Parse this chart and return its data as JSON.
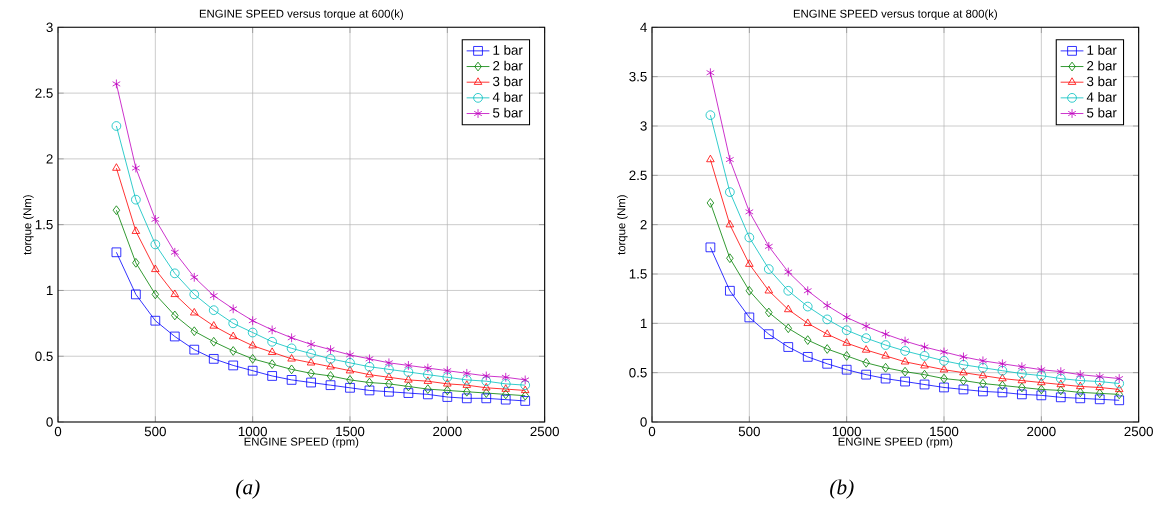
{
  "chart_data": [
    {
      "type": "line",
      "title": "ENGINE SPEED versus torque at 600(k)",
      "xlabel": "ENGINE SPEED (rpm)",
      "ylabel": "torque (Nm)",
      "annotations": [
        "(a)"
      ],
      "x": [
        300,
        400,
        500,
        600,
        700,
        800,
        900,
        1000,
        1100,
        1200,
        1300,
        1400,
        1500,
        1600,
        1700,
        1800,
        1900,
        2000,
        2100,
        2200,
        2300,
        2400
      ],
      "xlim": [
        0,
        2500
      ],
      "xticks": [
        0,
        500,
        1000,
        1500,
        2000,
        2500
      ],
      "ylim": [
        0,
        3
      ],
      "yticks": [
        0,
        0.5,
        1,
        1.5,
        2,
        2.5,
        3
      ],
      "grid": true,
      "legend": "top right",
      "line_style": "solid",
      "series": [
        {
          "name": "1 bar",
          "color": "#0000ff",
          "marker": "square",
          "values": [
            1.29,
            0.97,
            0.77,
            0.65,
            0.55,
            0.48,
            0.43,
            0.39,
            0.35,
            0.32,
            0.3,
            0.28,
            0.26,
            0.24,
            0.23,
            0.22,
            0.21,
            0.19,
            0.18,
            0.18,
            0.17,
            0.16
          ]
        },
        {
          "name": "2 bar",
          "color": "#008000",
          "marker": "diamond",
          "values": [
            1.61,
            1.21,
            0.97,
            0.81,
            0.69,
            0.61,
            0.54,
            0.48,
            0.44,
            0.4,
            0.37,
            0.35,
            0.32,
            0.3,
            0.29,
            0.27,
            0.25,
            0.24,
            0.23,
            0.22,
            0.21,
            0.2
          ]
        },
        {
          "name": "3 bar",
          "color": "#ff0000",
          "marker": "triangle",
          "values": [
            1.93,
            1.45,
            1.16,
            0.97,
            0.83,
            0.73,
            0.65,
            0.58,
            0.53,
            0.48,
            0.45,
            0.42,
            0.39,
            0.36,
            0.34,
            0.32,
            0.31,
            0.29,
            0.28,
            0.26,
            0.25,
            0.24
          ]
        },
        {
          "name": "4 bar",
          "color": "#00bfbf",
          "marker": "circle",
          "values": [
            2.25,
            1.69,
            1.35,
            1.13,
            0.97,
            0.85,
            0.75,
            0.68,
            0.61,
            0.56,
            0.52,
            0.48,
            0.45,
            0.42,
            0.4,
            0.38,
            0.36,
            0.34,
            0.32,
            0.31,
            0.29,
            0.28
          ]
        },
        {
          "name": "5 bar",
          "color": "#bf00bf",
          "marker": "cross",
          "values": [
            2.57,
            1.93,
            1.54,
            1.29,
            1.1,
            0.96,
            0.86,
            0.77,
            0.7,
            0.64,
            0.59,
            0.55,
            0.51,
            0.48,
            0.45,
            0.43,
            0.41,
            0.39,
            0.37,
            0.35,
            0.34,
            0.32
          ]
        }
      ]
    },
    {
      "type": "line",
      "title": "ENGINE SPEED versus torque at 800(k)",
      "xlabel": "ENGINE SPEED (rpm)",
      "ylabel": "torque (Nm)",
      "annotations": [
        "(b)"
      ],
      "x": [
        300,
        400,
        500,
        600,
        700,
        800,
        900,
        1000,
        1100,
        1200,
        1300,
        1400,
        1500,
        1600,
        1700,
        1800,
        1900,
        2000,
        2100,
        2200,
        2300,
        2400
      ],
      "xlim": [
        0,
        2500
      ],
      "xticks": [
        0,
        500,
        1000,
        1500,
        2000,
        2500
      ],
      "ylim": [
        0,
        4
      ],
      "yticks": [
        0,
        0.5,
        1,
        1.5,
        2,
        2.5,
        3,
        3.5,
        4
      ],
      "grid": true,
      "legend": "top right",
      "line_style": "solid",
      "series": [
        {
          "name": "1 bar",
          "color": "#0000ff",
          "marker": "square",
          "values": [
            1.77,
            1.33,
            1.06,
            0.89,
            0.76,
            0.66,
            0.59,
            0.53,
            0.48,
            0.44,
            0.41,
            0.38,
            0.35,
            0.33,
            0.31,
            0.3,
            0.28,
            0.27,
            0.25,
            0.24,
            0.23,
            0.22
          ]
        },
        {
          "name": "2 bar",
          "color": "#008000",
          "marker": "diamond",
          "values": [
            2.22,
            1.66,
            1.33,
            1.11,
            0.95,
            0.83,
            0.74,
            0.67,
            0.6,
            0.55,
            0.51,
            0.48,
            0.44,
            0.42,
            0.39,
            0.37,
            0.35,
            0.33,
            0.32,
            0.3,
            0.29,
            0.28
          ]
        },
        {
          "name": "3 bar",
          "color": "#ff0000",
          "marker": "triangle",
          "values": [
            2.66,
            2.0,
            1.6,
            1.33,
            1.14,
            1.0,
            0.89,
            0.8,
            0.73,
            0.67,
            0.61,
            0.57,
            0.53,
            0.5,
            0.47,
            0.44,
            0.42,
            0.4,
            0.38,
            0.36,
            0.35,
            0.33
          ]
        },
        {
          "name": "4 bar",
          "color": "#00bfbf",
          "marker": "circle",
          "values": [
            3.11,
            2.33,
            1.87,
            1.55,
            1.33,
            1.17,
            1.04,
            0.93,
            0.85,
            0.78,
            0.72,
            0.67,
            0.62,
            0.58,
            0.55,
            0.52,
            0.49,
            0.47,
            0.44,
            0.42,
            0.41,
            0.39
          ]
        },
        {
          "name": "5 bar",
          "color": "#bf00bf",
          "marker": "cross",
          "values": [
            3.54,
            2.66,
            2.13,
            1.78,
            1.52,
            1.33,
            1.18,
            1.06,
            0.97,
            0.89,
            0.82,
            0.76,
            0.71,
            0.66,
            0.62,
            0.59,
            0.56,
            0.53,
            0.51,
            0.48,
            0.46,
            0.44
          ]
        }
      ]
    }
  ]
}
